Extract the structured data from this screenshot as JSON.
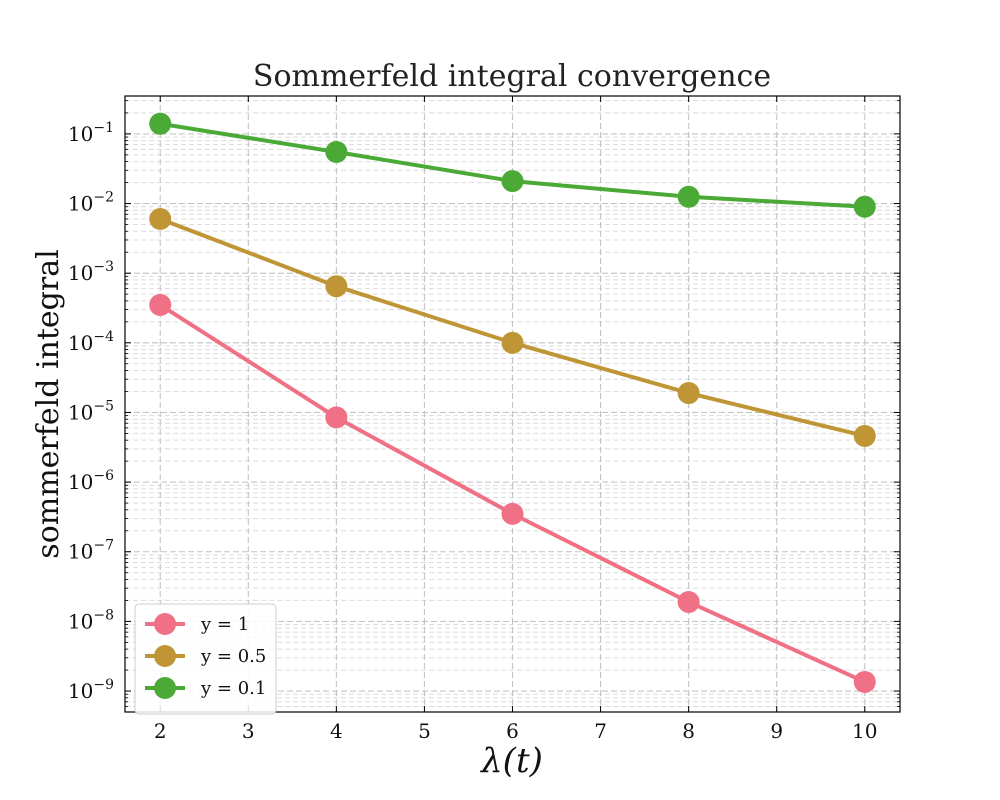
{
  "chart_data": {
    "type": "line",
    "title": "Sommerfeld integral convergence",
    "xlabel": "λ(t)",
    "ylabel": "sommerfeld integral",
    "x": [
      2,
      4,
      6,
      8,
      10
    ],
    "xlim": [
      1.6,
      10.4
    ],
    "xticks": [
      2,
      3,
      4,
      5,
      6,
      7,
      8,
      9,
      10
    ],
    "yscale": "log",
    "ylim": [
      5e-10,
      0.35
    ],
    "ytick_exponents": [
      -9,
      -8,
      -7,
      -6,
      -5,
      -4,
      -3,
      -2,
      -1
    ],
    "grid": true,
    "legend_position": "lower-left",
    "series": [
      {
        "name": "y = 1",
        "color": "#f07085",
        "values": [
          0.00035,
          8.5e-06,
          3.5e-07,
          1.9e-08,
          1.35e-09
        ]
      },
      {
        "name": "y = 0.5",
        "color": "#bf9535",
        "values": [
          0.006,
          0.00065,
          0.0001,
          1.9e-05,
          4.6e-06
        ]
      },
      {
        "name": "y = 0.1",
        "color": "#4aaa35",
        "values": [
          0.14,
          0.055,
          0.021,
          0.0125,
          0.009
        ]
      }
    ]
  }
}
